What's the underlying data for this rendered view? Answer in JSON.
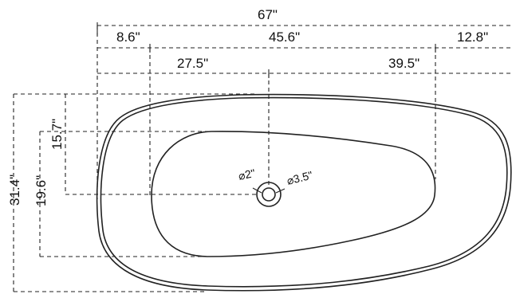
{
  "drawing": {
    "dimensions": {
      "overall_length": "67\"",
      "left_to_basin": "8.6\"",
      "basin_length": "45.6\"",
      "right_offset": "12.8\"",
      "left_to_drain": "27.5\"",
      "drain_to_right": "39.5\"",
      "overall_width": "31.4\"",
      "basin_width": "19.6\"",
      "drain_from_top": "15.7\"",
      "drain_inner_dia": "⌀2\"",
      "drain_outer_dia": "⌀3.5\""
    }
  }
}
